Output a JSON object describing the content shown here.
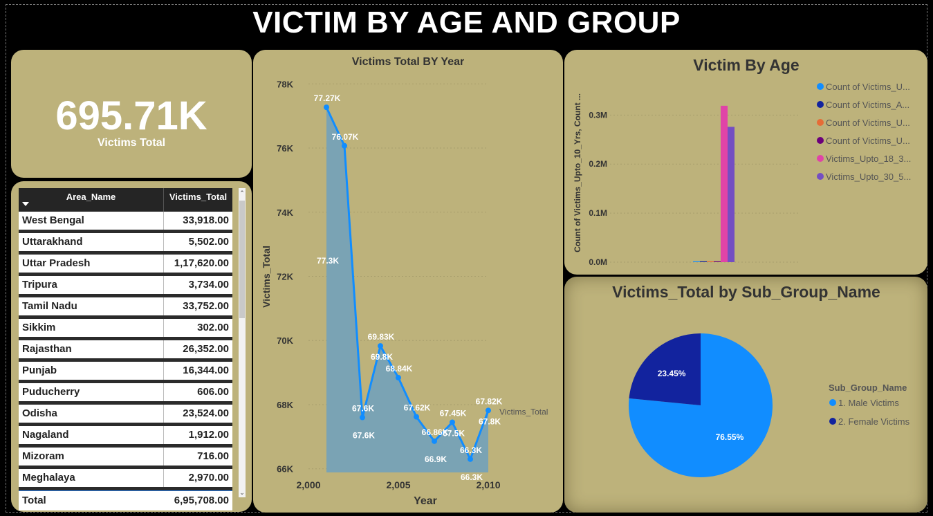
{
  "dashboard_title": "VICTIM BY AGE AND GROUP",
  "kpi": {
    "value": "695.71K",
    "label": "Victims Total"
  },
  "table": {
    "headers": [
      "Area_Name",
      "Victims_Total"
    ],
    "rows": [
      [
        "West Bengal",
        "33,918.00"
      ],
      [
        "Uttarakhand",
        "5,502.00"
      ],
      [
        "Uttar Pradesh",
        "1,17,620.00"
      ],
      [
        "Tripura",
        "3,734.00"
      ],
      [
        "Tamil Nadu",
        "33,752.00"
      ],
      [
        "Sikkim",
        "302.00"
      ],
      [
        "Rajasthan",
        "26,352.00"
      ],
      [
        "Punjab",
        "16,344.00"
      ],
      [
        "Puducherry",
        "606.00"
      ],
      [
        "Odisha",
        "23,524.00"
      ],
      [
        "Nagaland",
        "1,912.00"
      ],
      [
        "Mizoram",
        "716.00"
      ],
      [
        "Meghalaya",
        "2,970.00"
      ]
    ],
    "total": [
      "Total",
      "6,95,708.00"
    ]
  },
  "chart_data": [
    {
      "type": "line",
      "title": "Victims Total BY Year",
      "xlabel": "Year",
      "ylabel": "Victims_Total",
      "xlim": [
        2000,
        2010
      ],
      "ylim": [
        65800,
        78200
      ],
      "x_ticks": [
        2000,
        2005,
        2010
      ],
      "x_tick_labels": [
        "2,000",
        "2,005",
        "2,010"
      ],
      "y_ticks": [
        66000,
        68000,
        70000,
        72000,
        74000,
        76000,
        78000
      ],
      "y_tick_labels": [
        "66K",
        "68K",
        "70K",
        "72K",
        "74K",
        "76K",
        "78K"
      ],
      "series": [
        {
          "name": "Victims_Total",
          "x": [
            2001,
            2002,
            2003,
            2004,
            2005,
            2006,
            2007,
            2008,
            2009,
            2010
          ],
          "y": [
            77270,
            76070,
            67600,
            69830,
            68840,
            67620,
            66860,
            67450,
            66300,
            67820
          ],
          "labels": [
            "77.27K",
            "76.07K",
            "67.6K",
            "69.83K",
            "68.84K",
            "67.62K",
            "66.86K",
            "67.45K",
            "66.3K",
            "67.82K"
          ]
        },
        {
          "name": "",
          "type": "area",
          "x": [
            2001,
            2002,
            2003,
            2004,
            2005,
            2006,
            2007,
            2008,
            2009,
            2010
          ],
          "labels": [
            "77.3K",
            "",
            "67.6K",
            "69.8K",
            "",
            "",
            "66.9K",
            "67.5K",
            "66.3K",
            "67.8K"
          ]
        }
      ],
      "series_end_label": "Victims_Total",
      "colors": {
        "line": "#118dff",
        "area": "#7aa3b4"
      }
    },
    {
      "type": "bar",
      "title": "Victim By Age",
      "ylabel": "Count of Victims_Upto_10_Yrs, Count ...",
      "ylim": [
        0,
        340000
      ],
      "y_ticks": [
        0,
        100000,
        200000,
        300000
      ],
      "y_tick_labels": [
        "0.0M",
        "0.1M",
        "0.2M",
        "0.3M"
      ],
      "legend_position": "right",
      "series": [
        {
          "name": "Count of Victims_U...",
          "value": 1700,
          "color": "#118dff"
        },
        {
          "name": "Count of Victims_A...",
          "value": 1700,
          "color": "#12239e"
        },
        {
          "name": "Count of Victims_U...",
          "value": 1700,
          "color": "#e66c37"
        },
        {
          "name": "Count of Victims_U...",
          "value": 1700,
          "color": "#6b007b"
        },
        {
          "name": "Victims_Upto_18_3...",
          "value": 319000,
          "color": "#e044a7"
        },
        {
          "name": "Victims_Upto_30_5...",
          "value": 276000,
          "color": "#744ec2"
        }
      ]
    },
    {
      "type": "pie",
      "title": "Victims_Total by Sub_Group_Name",
      "legend_title": "Sub_Group_Name",
      "slices": [
        {
          "name": "1. Male Victims",
          "value": 76.55,
          "label": "76.55%",
          "color": "#118dff"
        },
        {
          "name": "2. Female Victims",
          "value": 23.45,
          "label": "23.45%",
          "color": "#12239e"
        }
      ]
    }
  ]
}
